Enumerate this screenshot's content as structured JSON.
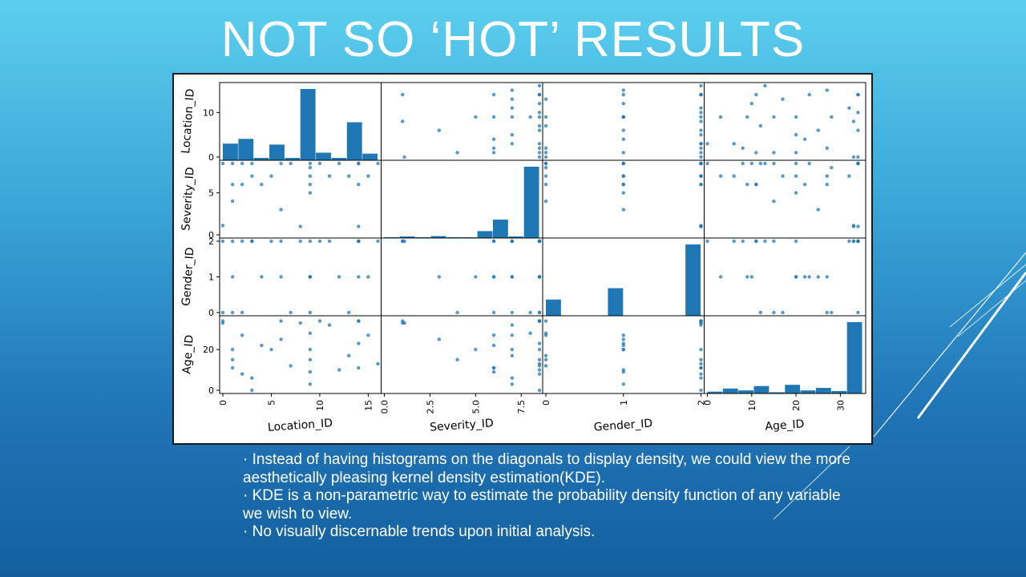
{
  "slide": {
    "title": "NOT SO ‘HOT’ RESULTS",
    "bullets": [
      "· Instead of having histograms on the diagonals to display density, we could view the more aesthetically pleasing kernel density estimation(KDE).",
      "· KDE is a non-parametric way to estimate the probability  density function of any variable we wish to view.",
      "· No visually discernable trends upon initial  analysis."
    ]
  },
  "colors": {
    "point": "#1f77b4",
    "bar": "#1f77b4",
    "title_text": "#ffffff",
    "background_top": "#5ccfee",
    "background_bottom": "#135f9e"
  },
  "chart_data": {
    "type": "scatter",
    "subtype": "scatter_matrix",
    "variables": [
      "Location_ID",
      "Severity_ID",
      "Gender_ID",
      "Age_ID"
    ],
    "ranges": {
      "Location_ID": [
        0,
        16
      ],
      "Severity_ID": [
        0,
        8.5
      ],
      "Gender_ID": [
        0,
        2
      ],
      "Age_ID": [
        0,
        35
      ]
    },
    "ticks": {
      "Location_ID": [
        0,
        5,
        10,
        15
      ],
      "Severity_ID": [
        0.0,
        2.5,
        5.0,
        7.5
      ],
      "Gender_ID": [
        0,
        1,
        2
      ],
      "Age_ID": [
        0,
        10,
        20,
        30
      ]
    },
    "y_ticks": {
      "Location_ID": [
        0,
        10
      ],
      "Severity_ID": [
        0,
        5
      ],
      "Gender_ID": [
        0,
        1,
        2
      ],
      "Age_ID": [
        0,
        20
      ]
    },
    "tick_labels": {
      "Location_ID": [
        "0",
        "5",
        "10",
        "15"
      ],
      "Severity_ID": [
        "0.0",
        "2.5",
        "5.0",
        "7.5"
      ],
      "Gender_ID": [
        "0",
        "1",
        "2"
      ],
      "Age_ID": [
        "0",
        "10",
        "20",
        "30"
      ]
    },
    "y_tick_labels": {
      "Location_ID": [
        "0",
        "10"
      ],
      "Severity_ID": [
        "0",
        "5"
      ],
      "Gender_ID": [
        "0",
        "1",
        "2"
      ],
      "Age_ID": [
        "0",
        "20"
      ]
    },
    "histograms": {
      "Location_ID": [
        3.5,
        4.5,
        0.5,
        3.3,
        0.5,
        15,
        1.6,
        0.5,
        8,
        1.4
      ],
      "Severity_ID": [
        0.1,
        0.2,
        0.1,
        0.25,
        0.1,
        0.1,
        0.9,
        2.4,
        0.2,
        9.3
      ],
      "Gender_ID": [
        1,
        0,
        0,
        0,
        1.7,
        0,
        0,
        0,
        0,
        4.4
      ],
      "Age_ID": [
        0.3,
        0.8,
        0.5,
        1.2,
        0.2,
        1.4,
        0.5,
        0.9,
        0.4,
        11.5
      ]
    },
    "points": [
      {
        "Location_ID": 0,
        "Severity_ID": 8.5,
        "Gender_ID": 0,
        "Age_ID": 34
      },
      {
        "Location_ID": 0,
        "Severity_ID": 1.1,
        "Gender_ID": 2,
        "Age_ID": 33
      },
      {
        "Location_ID": 1,
        "Severity_ID": 8.5,
        "Gender_ID": 1,
        "Age_ID": 20
      },
      {
        "Location_ID": 1,
        "Severity_ID": 6.0,
        "Gender_ID": 2,
        "Age_ID": 11
      },
      {
        "Location_ID": 1,
        "Severity_ID": 4.0,
        "Gender_ID": 0,
        "Age_ID": 15
      },
      {
        "Location_ID": 2,
        "Severity_ID": 8.5,
        "Gender_ID": 2,
        "Age_ID": 8
      },
      {
        "Location_ID": 2,
        "Severity_ID": 6.0,
        "Gender_ID": 0,
        "Age_ID": 27
      },
      {
        "Location_ID": 3,
        "Severity_ID": 8.5,
        "Gender_ID": 2,
        "Age_ID": 0
      },
      {
        "Location_ID": 3,
        "Severity_ID": 7.0,
        "Gender_ID": 2,
        "Age_ID": 6
      },
      {
        "Location_ID": 4,
        "Severity_ID": 6.0,
        "Gender_ID": 1,
        "Age_ID": 22
      },
      {
        "Location_ID": 5,
        "Severity_ID": 7.0,
        "Gender_ID": 2,
        "Age_ID": 20
      },
      {
        "Location_ID": 6,
        "Severity_ID": 3.0,
        "Gender_ID": 1,
        "Age_ID": 25
      },
      {
        "Location_ID": 6,
        "Severity_ID": 8.5,
        "Gender_ID": 2,
        "Age_ID": 34
      },
      {
        "Location_ID": 7,
        "Severity_ID": 8.5,
        "Gender_ID": 0,
        "Age_ID": 12
      },
      {
        "Location_ID": 8,
        "Severity_ID": 1.0,
        "Gender_ID": 2,
        "Age_ID": 33
      },
      {
        "Location_ID": 9,
        "Severity_ID": 7.0,
        "Gender_ID": 1,
        "Age_ID": 3
      },
      {
        "Location_ID": 9,
        "Severity_ID": 8.5,
        "Gender_ID": 2,
        "Age_ID": 15
      },
      {
        "Location_ID": 9,
        "Severity_ID": 8.0,
        "Gender_ID": 0,
        "Age_ID": 28
      },
      {
        "Location_ID": 9,
        "Severity_ID": 6.0,
        "Gender_ID": 1,
        "Age_ID": 9
      },
      {
        "Location_ID": 10,
        "Severity_ID": 8.5,
        "Gender_ID": 2,
        "Age_ID": 34
      },
      {
        "Location_ID": 11,
        "Severity_ID": 7.0,
        "Gender_ID": 2,
        "Age_ID": 32
      },
      {
        "Location_ID": 12,
        "Severity_ID": 8.5,
        "Gender_ID": 1,
        "Age_ID": 10
      },
      {
        "Location_ID": 13,
        "Severity_ID": 7.0,
        "Gender_ID": 0,
        "Age_ID": 17
      },
      {
        "Location_ID": 14,
        "Severity_ID": 8.5,
        "Gender_ID": 2,
        "Age_ID": 34
      },
      {
        "Location_ID": 14,
        "Severity_ID": 8.5,
        "Gender_ID": 1,
        "Age_ID": 23
      },
      {
        "Location_ID": 15,
        "Severity_ID": 7.0,
        "Gender_ID": 1,
        "Age_ID": 27
      },
      {
        "Location_ID": 16,
        "Severity_ID": 8.5,
        "Gender_ID": 2,
        "Age_ID": 13
      },
      {
        "Location_ID": 14,
        "Severity_ID": 1.0,
        "Gender_ID": 2,
        "Age_ID": 34
      },
      {
        "Location_ID": 9,
        "Severity_ID": 5.0,
        "Gender_ID": 1,
        "Age_ID": 20
      },
      {
        "Location_ID": 14,
        "Severity_ID": 6.0,
        "Gender_ID": 2,
        "Age_ID": 11
      }
    ],
    "title": "",
    "grid": false,
    "legend": "none"
  }
}
